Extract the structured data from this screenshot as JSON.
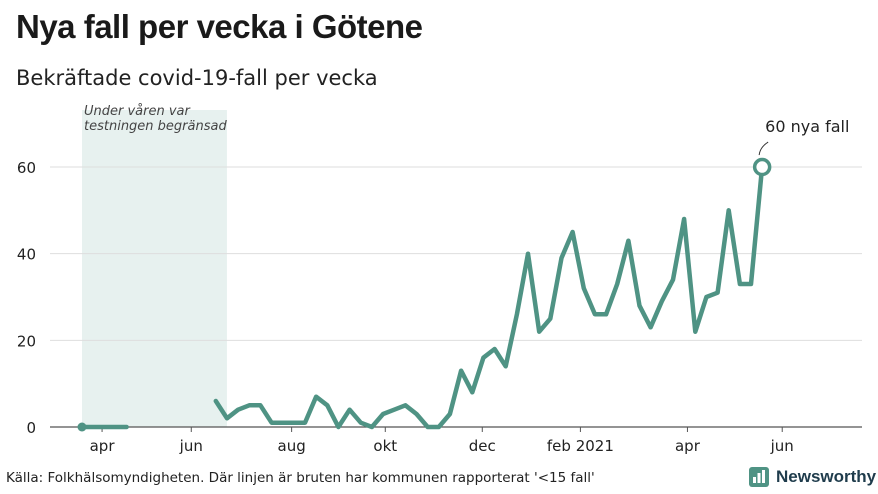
{
  "title": "Nya fall per vecka i Götene",
  "subtitle": "Bekräftade covid-19-fall per vecka",
  "footer": "Källa: Folkhälsomyndigheten. Där linjen är bruten har kommunen rapporterat '<15 fall'",
  "brand": "Newsworthy",
  "colors": {
    "line": "#4f9384",
    "shade": "#e7f1ef",
    "grid": "#dedede"
  },
  "chart_data": {
    "type": "line",
    "x_unit": "week",
    "ylim": [
      0,
      70
    ],
    "y_ticks": [
      0,
      20,
      40,
      60
    ],
    "x_tick_labels": [
      "apr",
      "jun",
      "aug",
      "okt",
      "dec",
      "feb 2021",
      "apr",
      "jun"
    ],
    "shaded_region": {
      "label": "Under våren var testningen begränsad"
    },
    "annotation": {
      "text": "60 nya fall",
      "week": 61,
      "value": 60
    },
    "series": [
      {
        "segments": [
          [
            [
              0,
              0
            ],
            [
              1,
              0
            ],
            [
              2,
              0
            ],
            [
              3,
              0
            ],
            [
              4,
              0
            ]
          ],
          [
            [
              12,
              6
            ],
            [
              13,
              2
            ],
            [
              14,
              4
            ],
            [
              15,
              5
            ],
            [
              16,
              5
            ],
            [
              17,
              1
            ],
            [
              18,
              1
            ],
            [
              19,
              1
            ],
            [
              20,
              1
            ],
            [
              21,
              7
            ],
            [
              22,
              5
            ],
            [
              23,
              0
            ],
            [
              24,
              4
            ],
            [
              25,
              1
            ],
            [
              26,
              0
            ],
            [
              27,
              3
            ],
            [
              28,
              4
            ],
            [
              29,
              5
            ],
            [
              30,
              3
            ],
            [
              31,
              0
            ],
            [
              32,
              0
            ],
            [
              33,
              3
            ],
            [
              34,
              13
            ],
            [
              35,
              8
            ],
            [
              36,
              16
            ],
            [
              37,
              18
            ],
            [
              38,
              14
            ],
            [
              39,
              26
            ],
            [
              40,
              40
            ],
            [
              41,
              22
            ],
            [
              42,
              25
            ],
            [
              43,
              39
            ],
            [
              44,
              45
            ],
            [
              45,
              32
            ],
            [
              46,
              26
            ],
            [
              47,
              26
            ],
            [
              48,
              33
            ],
            [
              49,
              43
            ],
            [
              50,
              28
            ],
            [
              51,
              23
            ],
            [
              52,
              29
            ],
            [
              53,
              34
            ],
            [
              54,
              48
            ],
            [
              55,
              22
            ],
            [
              56,
              30
            ],
            [
              57,
              31
            ],
            [
              58,
              50
            ],
            [
              59,
              33
            ],
            [
              60,
              33
            ],
            [
              61,
              60
            ]
          ]
        ]
      }
    ]
  }
}
